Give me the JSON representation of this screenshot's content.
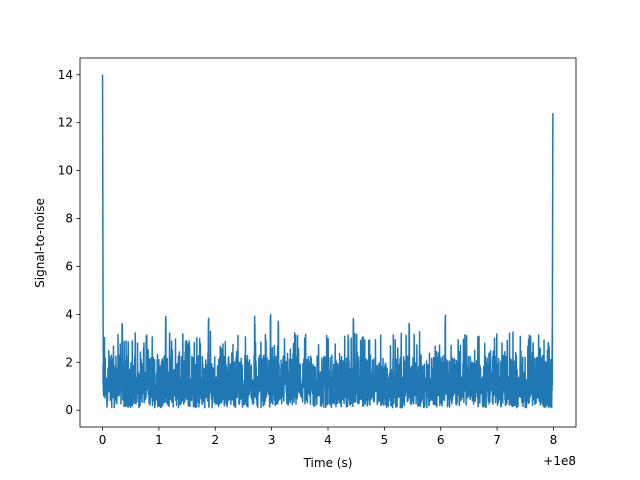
{
  "chart_data": {
    "type": "line",
    "xlabel": "Time (s)",
    "ylabel": "Signal-to-noise",
    "offset_label": "+1e8",
    "xlim": [
      -0.4,
      8.4
    ],
    "ylim": [
      -0.7,
      14.7
    ],
    "xticks": [
      0,
      1,
      2,
      3,
      4,
      5,
      6,
      7,
      8
    ],
    "xtick_labels": [
      "0",
      "1",
      "2",
      "3",
      "4",
      "5",
      "6",
      "7",
      "8"
    ],
    "yticks": [
      0,
      2,
      4,
      6,
      8,
      10,
      12,
      14
    ],
    "ytick_labels": [
      "0",
      "2",
      "4",
      "6",
      "8",
      "10",
      "12",
      "14"
    ],
    "grid": false,
    "series": [
      {
        "color": "#1f77b4",
        "peaks": [
          {
            "x": 0.0,
            "y": 14.0
          },
          {
            "x": 7.99,
            "y": 12.4
          }
        ],
        "noise_range": [
          0.05,
          4.05
        ],
        "noise_typical_max": 2.7
      }
    ]
  }
}
